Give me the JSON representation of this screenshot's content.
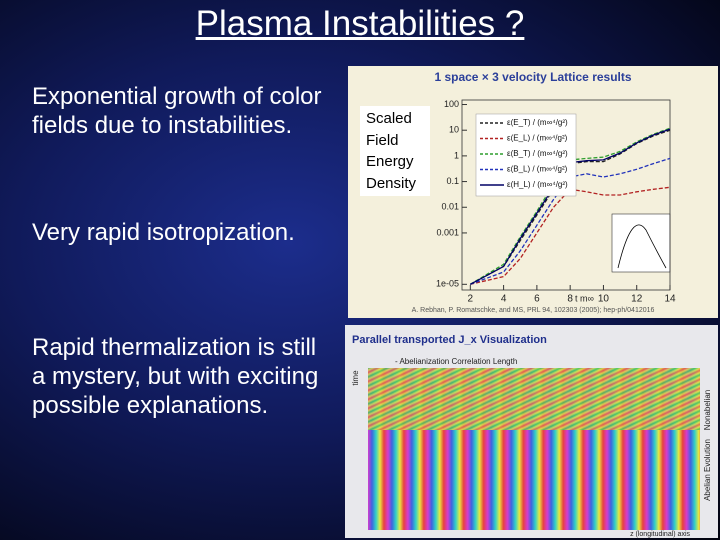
{
  "slide": {
    "title": "Plasma Instabilities ?",
    "bullets": [
      "Exponential growth of color fields due to instabilities.",
      "Very rapid isotropization.",
      "Rapid thermalization is still a mystery, but with exciting possible explanations."
    ]
  },
  "chart_data": {
    "type": "line",
    "title": "1 space × 3 velocity Lattice results",
    "y_label": "Scaled Field Energy Density",
    "x_label": "t m∞",
    "citation": "A. Rebhan, P. Romatschke, and MS, PRL 94, 102303 (2005); hep-ph/0412016",
    "log_y": true,
    "x": [
      2,
      4,
      5,
      6,
      7,
      8,
      9,
      10,
      11,
      12,
      13,
      14
    ],
    "series": [
      {
        "name": "ε(E_T) / (m∞⁴/g²)",
        "color": "#222222",
        "values": [
          1e-05,
          5e-05,
          0.0005,
          0.005,
          0.05,
          0.5,
          0.6,
          0.6,
          1.2,
          3,
          6,
          10
        ]
      },
      {
        "name": "ε(E_L) / (m∞⁴/g²)",
        "color": "#b22222",
        "values": [
          1e-05,
          2e-05,
          0.0001,
          0.001,
          0.01,
          0.05,
          0.04,
          0.03,
          0.03,
          0.04,
          0.05,
          0.06
        ]
      },
      {
        "name": "ε(B_T) / (m∞⁴/g²)",
        "color": "#2e9e2e",
        "values": [
          1e-05,
          6e-05,
          0.0007,
          0.007,
          0.08,
          0.7,
          0.8,
          0.9,
          1.5,
          3.5,
          7,
          12
        ]
      },
      {
        "name": "ε(B_L) / (m∞⁴/g²)",
        "color": "#2233bb",
        "values": [
          1e-05,
          3e-05,
          0.0002,
          0.002,
          0.02,
          0.15,
          0.2,
          0.15,
          0.2,
          0.3,
          0.5,
          0.8
        ]
      },
      {
        "name": "ε(H_L) / (m∞⁴/g²)",
        "color": "#000066",
        "values": [
          1e-05,
          5e-05,
          0.0006,
          0.006,
          0.06,
          0.55,
          0.65,
          0.7,
          1.3,
          3.2,
          6.5,
          11
        ]
      }
    ],
    "xlim": [
      1.5,
      14
    ],
    "xticks": [
      2,
      4,
      6,
      8,
      10,
      12,
      14
    ],
    "ylim": [
      6e-06,
      150
    ],
    "yticks": [
      100,
      10,
      1,
      0.1,
      0.01,
      0.001,
      {
        "value": 1e-05,
        "label": "1e-05"
      }
    ]
  },
  "figure2": {
    "title": "Parallel transported J_x Visualization",
    "note": "- Abelianization Correlation Length",
    "time_label": "time",
    "side_labels": [
      "Abelian Evolution",
      "Nonabelian"
    ],
    "axis_label": "z (longitudinal) axis"
  }
}
